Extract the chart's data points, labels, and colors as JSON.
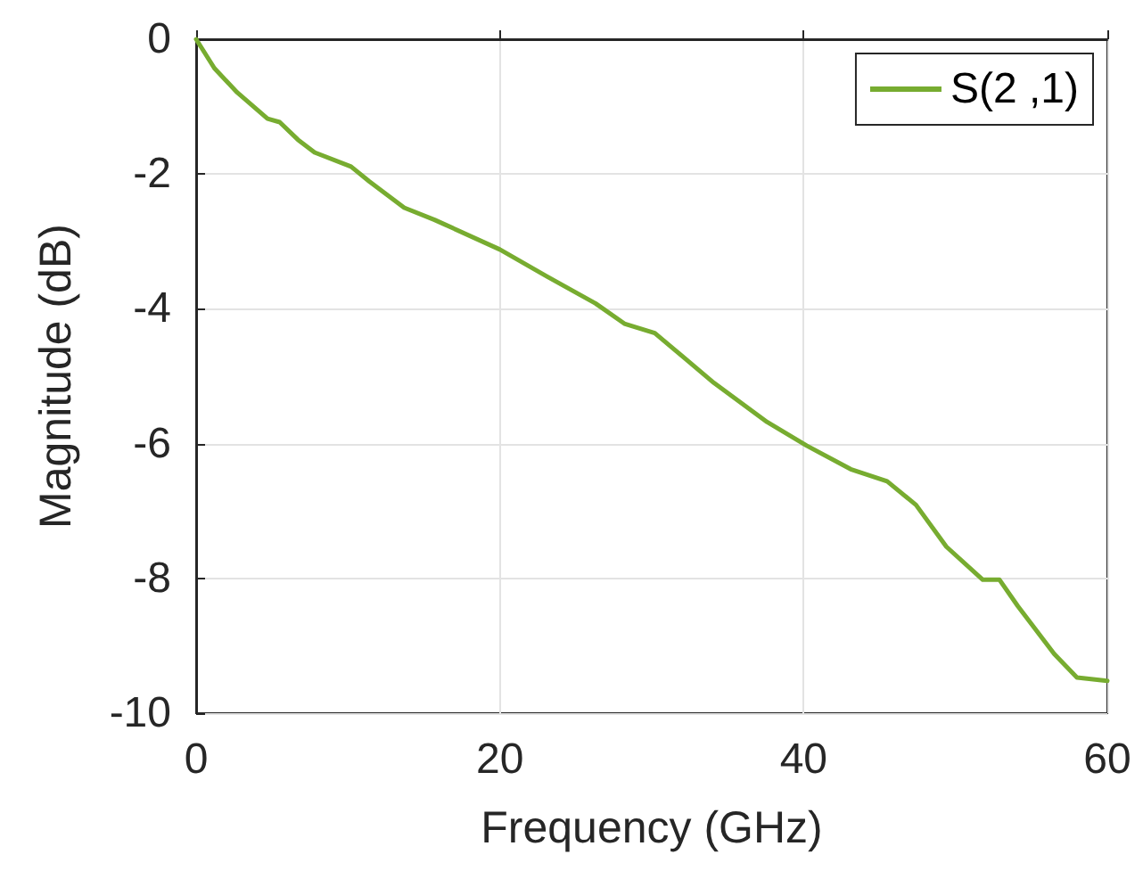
{
  "chart_data": {
    "type": "line",
    "xlabel": "Frequency (GHz)",
    "ylabel": "Magnitude (dB)",
    "x": [
      0,
      1.2,
      2.7,
      4.7,
      5.5,
      6.7,
      7.8,
      10.2,
      11.4,
      13.7,
      15.7,
      20,
      23.1,
      26.3,
      28.2,
      30.2,
      34.1,
      37.6,
      40.2,
      43.1,
      45.5,
      47.4,
      49.4,
      51.8,
      52.9,
      54.1,
      56.5,
      58,
      60
    ],
    "series": [
      {
        "name": "S(2 ,1)",
        "color": "#77ac30",
        "values": [
          0,
          -0.43,
          -0.79,
          -1.18,
          -1.23,
          -1.49,
          -1.68,
          -1.89,
          -2.11,
          -2.5,
          -2.68,
          -3.12,
          -3.52,
          -3.92,
          -4.22,
          -4.36,
          -5.1,
          -5.68,
          -6.03,
          -6.38,
          -6.56,
          -6.91,
          -7.53,
          -8.02,
          -8.02,
          -8.41,
          -9.12,
          -9.47,
          -9.52
        ]
      }
    ],
    "xlim": [
      0,
      60
    ],
    "xticks": [
      0,
      20,
      40,
      60
    ],
    "ylim": [
      -10,
      0
    ],
    "yticks": [
      -10,
      -8,
      -6,
      -4,
      -2,
      0
    ],
    "grid": true,
    "legend": "top right",
    "marker": "none",
    "line_style": "solid"
  }
}
